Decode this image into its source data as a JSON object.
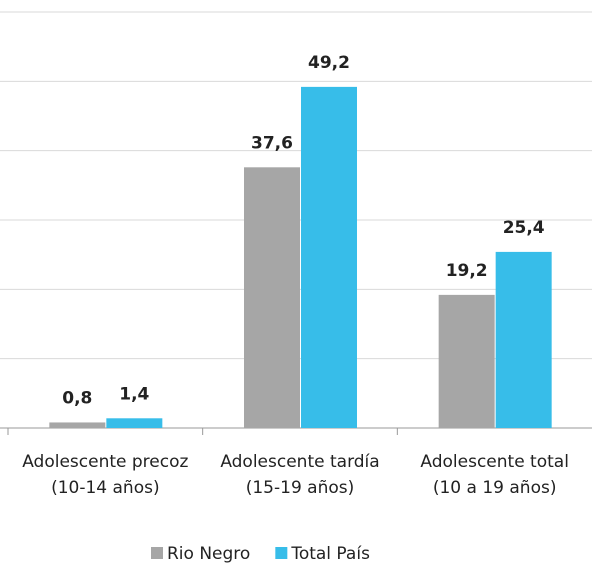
{
  "chart_data": {
    "type": "bar",
    "categories": [
      [
        "Adolescente precoz",
        "(10-14 años)"
      ],
      [
        "Adolescente tardía",
        "(15-19 años)"
      ],
      [
        "Adolescente total",
        "(10 a 19 años)"
      ]
    ],
    "series": [
      {
        "name": "Rio Negro",
        "color": "#a6a6a6",
        "values": [
          0.8,
          37.6,
          19.2
        ],
        "value_labels": [
          "0,8",
          "37,6",
          "19,2"
        ]
      },
      {
        "name": "Total País",
        "color": "#37bde9",
        "values": [
          1.4,
          49.2,
          25.4
        ],
        "value_labels": [
          "1,4",
          "49,2",
          "25,4"
        ]
      }
    ],
    "ylim": [
      0,
      60
    ],
    "yticks": [
      0,
      10,
      20,
      30,
      40,
      50,
      60
    ],
    "grid": true,
    "legend": "bottom"
  }
}
